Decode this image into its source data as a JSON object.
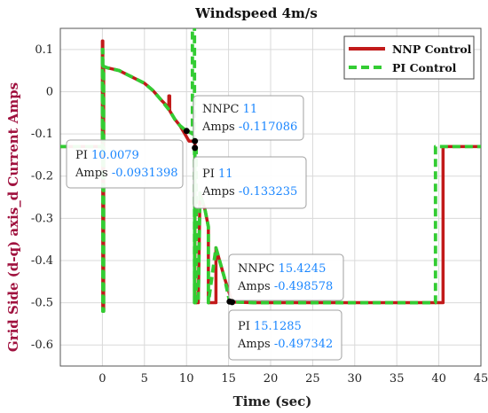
{
  "chart_data": {
    "type": "line",
    "title": "Windspeed 4m/s",
    "xlabel": "Time (sec)",
    "ylabel": "Grid Side (d-q) axis_d Current Amps",
    "xlim": [
      -5,
      45
    ],
    "ylim": [
      -0.65,
      0.15
    ],
    "x_ticks": [
      "0",
      "5",
      "10",
      "15",
      "20",
      "25",
      "30",
      "35",
      "40",
      "45"
    ],
    "y_ticks": [
      "0.1",
      "0",
      "-0.1",
      "-0.2",
      "-0.3",
      "-0.4",
      "-0.5",
      "-0.6"
    ],
    "grid": true,
    "legend_position": "top-right",
    "series": [
      {
        "name": "NNP Control",
        "color": "#c21a1a",
        "style": "solid",
        "x": [
          -5,
          0,
          0,
          0.05,
          0.05,
          0.15,
          0.15,
          0.5,
          2,
          3,
          5,
          6,
          7,
          7.5,
          7.9,
          7.9,
          8,
          8,
          8.6,
          9.2,
          9.8,
          10.3,
          11,
          11,
          11.4,
          11.4,
          11.6,
          12.2,
          12.6,
          12.6,
          13.5,
          13.5,
          14.5,
          15.4245,
          18,
          25,
          30,
          40.5,
          40.5,
          45
        ],
        "y": [
          -0.13,
          -0.13,
          0.12,
          0.12,
          -0.52,
          -0.52,
          0.06,
          0.057,
          0.05,
          0.04,
          0.02,
          0.003,
          -0.02,
          -0.03,
          -0.04,
          -0.01,
          -0.01,
          -0.045,
          -0.065,
          -0.08,
          -0.1,
          -0.117086,
          -0.117086,
          -0.5,
          -0.5,
          -0.5,
          -0.24,
          -0.28,
          -0.32,
          -0.5,
          -0.5,
          -0.37,
          -0.44,
          -0.498578,
          -0.5,
          -0.5,
          -0.5,
          -0.5,
          -0.13,
          -0.13
        ]
      },
      {
        "name": "PI Control",
        "color": "#33cc33",
        "style": "dashed",
        "x": [
          -5,
          0,
          0,
          0.05,
          0.05,
          0.15,
          0.15,
          0.5,
          2,
          3,
          5,
          6,
          7,
          8,
          8.6,
          9.2,
          9.8,
          10.0079,
          10.3,
          10.7,
          10.7,
          10.95,
          10.95,
          11,
          11.15,
          11.15,
          11.4,
          11.6,
          12.2,
          12.6,
          12.6,
          13.5,
          14.5,
          15.1285,
          18,
          25,
          30,
          39.6,
          39.6,
          45
        ],
        "y": [
          -0.13,
          -0.13,
          0.1,
          0.1,
          -0.52,
          -0.52,
          0.06,
          0.057,
          0.05,
          0.04,
          0.02,
          0.003,
          -0.02,
          -0.045,
          -0.065,
          -0.08,
          -0.09,
          -0.0931398,
          -0.095,
          -0.1,
          0.17,
          0.17,
          -0.5,
          -0.133235,
          -0.133235,
          -0.5,
          -0.5,
          -0.24,
          -0.28,
          -0.32,
          -0.5,
          -0.37,
          -0.44,
          -0.497342,
          -0.5,
          -0.5,
          -0.5,
          -0.5,
          -0.13,
          -0.13
        ]
      }
    ],
    "datatips": [
      {
        "label": "NNPC",
        "x": "11",
        "y_label": "Amps",
        "y": "-0.117086"
      },
      {
        "label": "PI",
        "x": "10.0079",
        "y_label": "Amps",
        "y": "-0.0931398"
      },
      {
        "label": "PI",
        "x": "11",
        "y_label": "Amps",
        "y": "-0.133235"
      },
      {
        "label": "NNPC",
        "x": "15.4245",
        "y_label": "Amps",
        "y": "-0.498578"
      },
      {
        "label": "PI",
        "x": "15.1285",
        "y_label": "Amps",
        "y": "-0.497342"
      }
    ],
    "colors": {
      "xlabel": "#222222",
      "ylabel": "#a0123f",
      "grid": "#d9d9d9"
    }
  }
}
